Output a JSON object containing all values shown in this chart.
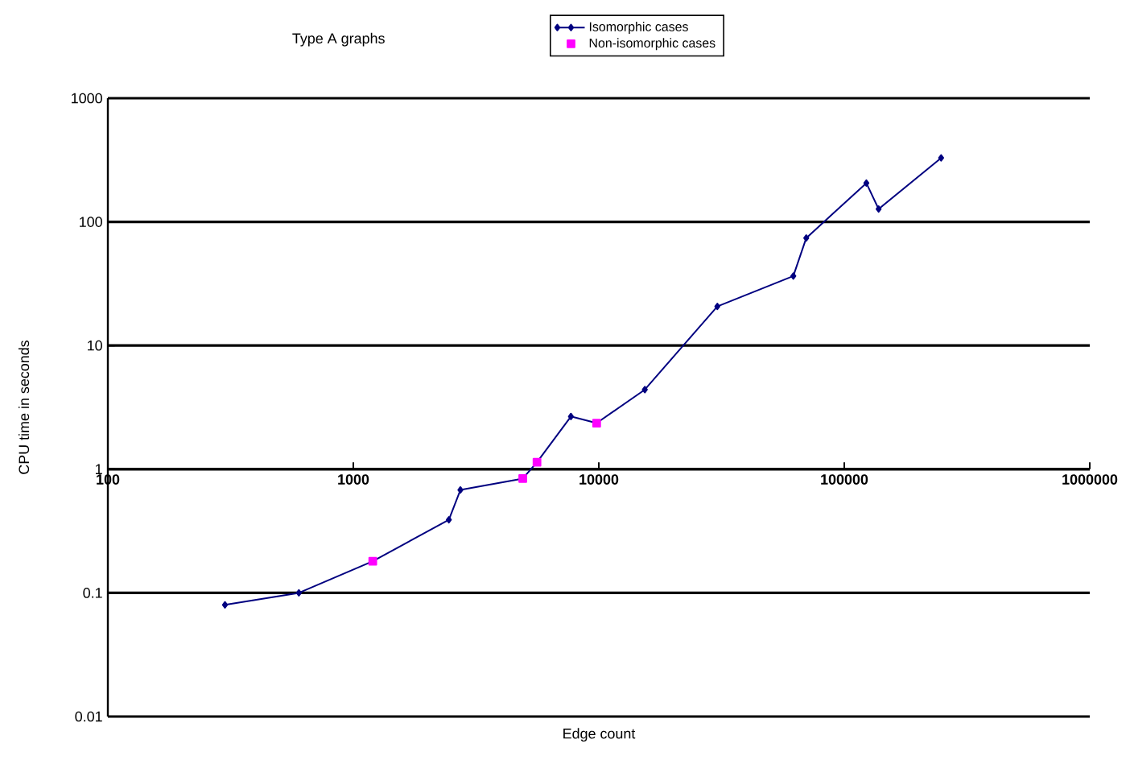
{
  "chart_data": {
    "type": "line",
    "title": "Type A graphs",
    "xlabel": "Edge count",
    "ylabel": "CPU time in seconds",
    "log": "xy",
    "xlim": [
      100,
      1000000
    ],
    "ylim": [
      0.01,
      1000
    ],
    "xticks": [
      100,
      1000,
      10000,
      100000,
      1000000
    ],
    "yticks": [
      0.01,
      0.1,
      1,
      10,
      100,
      1000
    ],
    "grid": "y",
    "legend": "top",
    "series": [
      {
        "name": "Isomorphic cases",
        "color": "#000080",
        "marker": "diamond",
        "x": [
          300,
          600,
          1200,
          2450,
          2730,
          4900,
          5600,
          7700,
          9800,
          15400,
          30400,
          62000,
          70000,
          123000,
          138000,
          248000
        ],
        "values": [
          0.08,
          0.1,
          0.18,
          0.39,
          0.68,
          0.84,
          1.14,
          2.67,
          2.36,
          4.4,
          20.7,
          36.5,
          74,
          206,
          127,
          329
        ]
      },
      {
        "name": "Non-isomorphic cases",
        "type": "scatter",
        "color": "#ff00ff",
        "marker": "square",
        "x": [
          1200,
          4900,
          5600,
          9800
        ],
        "values": [
          0.18,
          0.84,
          1.14,
          2.36
        ]
      }
    ]
  }
}
